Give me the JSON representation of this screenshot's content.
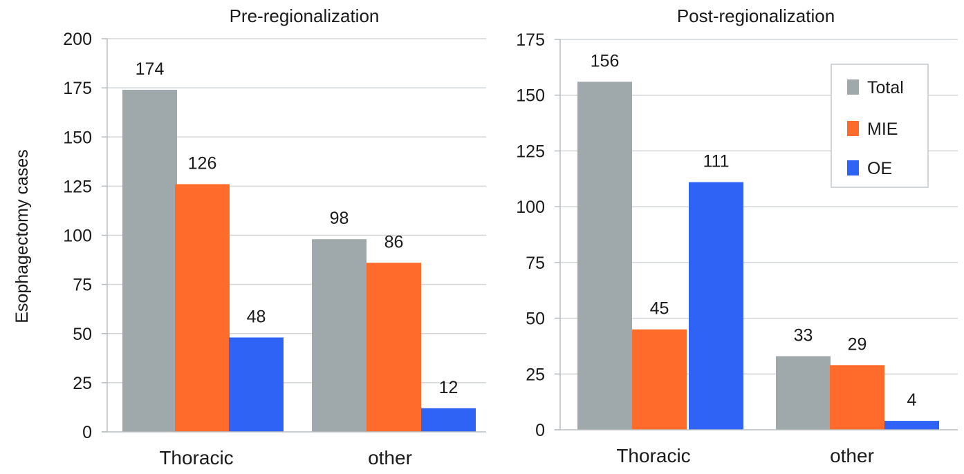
{
  "ylabel": "Esophagectomy cases",
  "legend": {
    "placement": "top-right of second chart",
    "entries": [
      "Total",
      "MIE",
      "OE"
    ]
  },
  "colors": {
    "Total": "#9fa9ab",
    "MIE": "#ff6b2a",
    "OE": "#2f63f5",
    "grid": "#d2d6d8",
    "axis": "#b8bec0"
  },
  "chart_data": [
    {
      "type": "bar",
      "title": "Pre-regionalization",
      "categories": [
        "Thoracic",
        "other"
      ],
      "series": [
        {
          "name": "Total",
          "values": [
            174,
            98
          ]
        },
        {
          "name": "MIE",
          "values": [
            126,
            86
          ]
        },
        {
          "name": "OE",
          "values": [
            48,
            12
          ]
        }
      ],
      "ylim": [
        0,
        200
      ],
      "yticks": [
        0,
        25,
        50,
        75,
        100,
        125,
        150,
        175,
        200
      ],
      "grid": true,
      "legend": false
    },
    {
      "type": "bar",
      "title": "Post-regionalization",
      "categories": [
        "Thoracic",
        "other"
      ],
      "series": [
        {
          "name": "Total",
          "values": [
            156,
            33
          ]
        },
        {
          "name": "MIE",
          "values": [
            45,
            29
          ]
        },
        {
          "name": "OE",
          "values": [
            111,
            4
          ]
        }
      ],
      "ylim": [
        0,
        175
      ],
      "yticks": [
        0,
        25,
        50,
        75,
        100,
        125,
        150,
        175
      ],
      "grid": true,
      "legend": true
    }
  ]
}
